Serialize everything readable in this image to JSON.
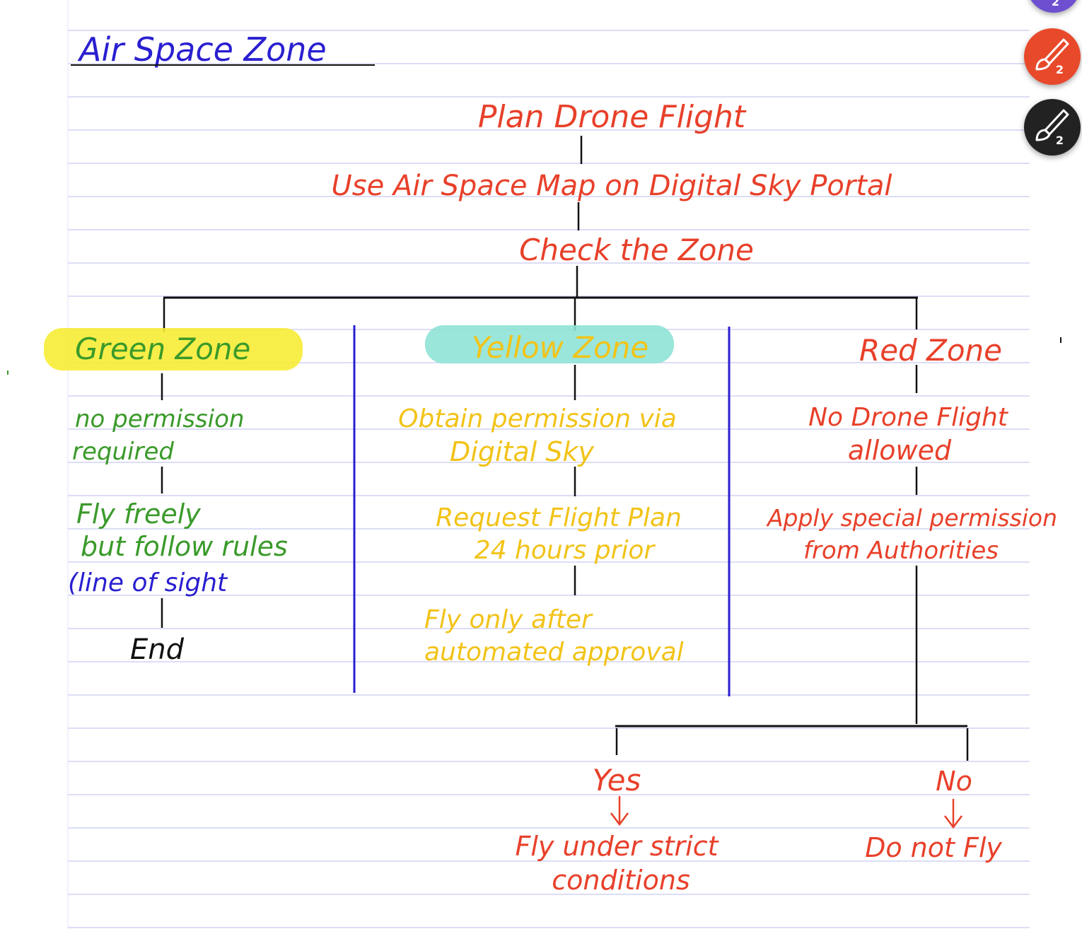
{
  "title": "Air Space Zone",
  "flow": {
    "start": "Plan Drone Flight",
    "step2": "Use Air Space Map on Digital Sky Portal",
    "step3": "Check the Zone"
  },
  "zones": {
    "green": {
      "label": "Green Zone",
      "step1": [
        "no permission",
        "required"
      ],
      "step2": [
        "Fly freely",
        "but follow rules"
      ],
      "step2_note": "(line of sight",
      "end": "End"
    },
    "yellow": {
      "label": "Yellow Zone",
      "step1": [
        "Obtain permission via",
        "Digital Sky"
      ],
      "step2": [
        "Request Flight Plan",
        "24 hours prior"
      ],
      "step3": [
        "Fly only after",
        "automated approval"
      ]
    },
    "red": {
      "label": "Red Zone",
      "step1": [
        "No Drone Flight",
        "allowed"
      ],
      "step2": [
        "Apply special permission",
        "from Authorities"
      ],
      "yes": {
        "label": "Yes",
        "outcome": [
          "Fly under strict",
          "conditions"
        ]
      },
      "no": {
        "label": "No",
        "outcome": "Do not Fly"
      }
    }
  },
  "tools": [
    {
      "icon": "brush-icon",
      "color": "#6d4fd0",
      "count": "2"
    },
    {
      "icon": "brush-icon",
      "color": "#e8492b",
      "count": "2"
    },
    {
      "icon": "brush-icon",
      "color": "#222222",
      "count": "2"
    }
  ],
  "colors": {
    "red_ink": "#e8402a",
    "green_ink": "#3a9a2a",
    "yellow_ink": "#f2c318",
    "blue_ink": "#2a1fd0",
    "rule_line": "#c7c9f0",
    "green_highlight": "#f7ec35",
    "yellow_highlight": "#8fe3d6"
  }
}
